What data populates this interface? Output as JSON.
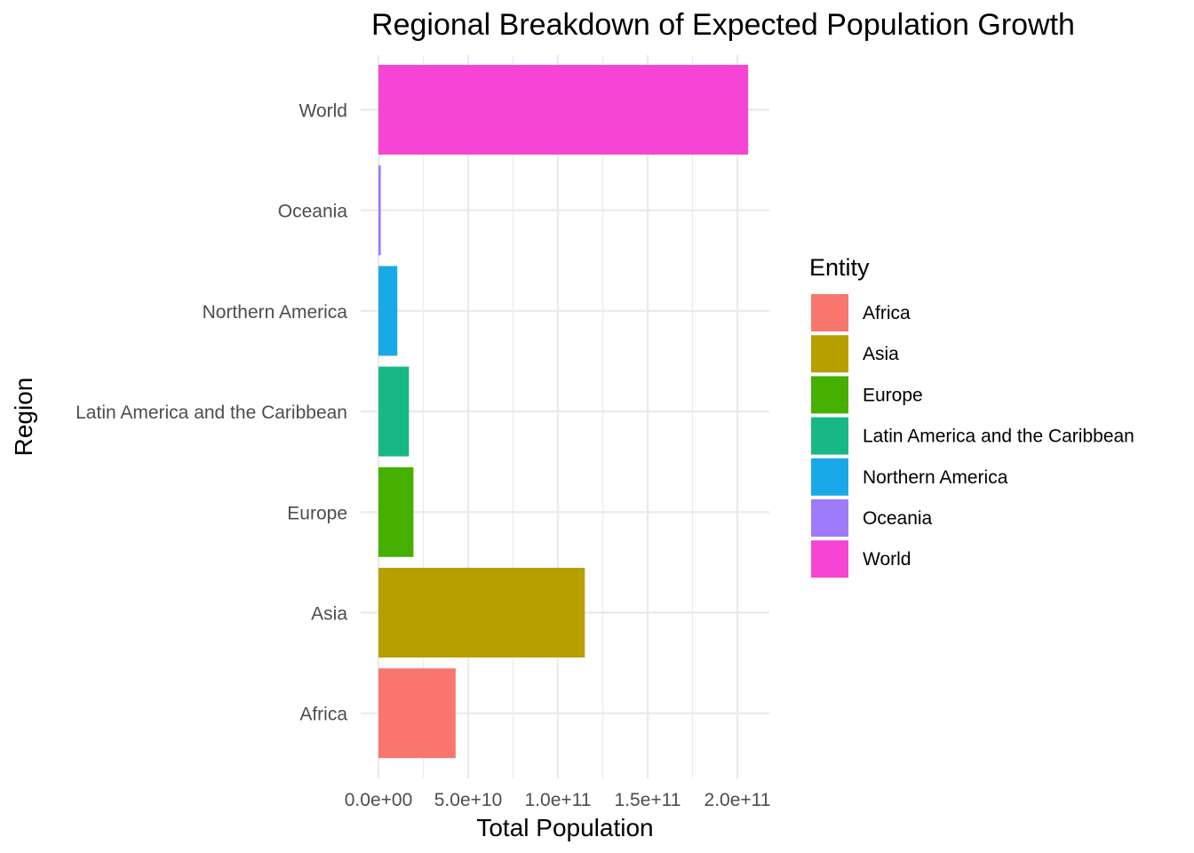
{
  "chart_data": {
    "type": "bar",
    "orientation": "horizontal",
    "title": "Regional Breakdown of Expected Population Growth",
    "xlabel": "Total Population",
    "ylabel": "Region",
    "categories": [
      "Africa",
      "Asia",
      "Europe",
      "Latin America and the Caribbean",
      "Northern America",
      "Oceania",
      "World"
    ],
    "values": [
      43000000000,
      115000000000,
      19500000000,
      17000000000,
      10500000000,
      1300000000,
      206000000000
    ],
    "xlim": [
      0,
      215000000000
    ],
    "x_ticks": [
      0,
      50000000000,
      100000000000,
      150000000000,
      200000000000
    ],
    "x_tick_labels": [
      "0.0e+00",
      "5.0e+10",
      "1.0e+11",
      "1.5e+11",
      "2.0e+11"
    ],
    "colors": [
      "#F8766D",
      "#B79F00",
      "#45B000",
      "#17B886",
      "#19A9E8",
      "#9D7BFB",
      "#F645D4"
    ],
    "grid": true,
    "legend": {
      "title": "Entity",
      "position": "right",
      "entries": [
        "Africa",
        "Asia",
        "Europe",
        "Latin America and the Caribbean",
        "Northern America",
        "Oceania",
        "World"
      ]
    }
  }
}
